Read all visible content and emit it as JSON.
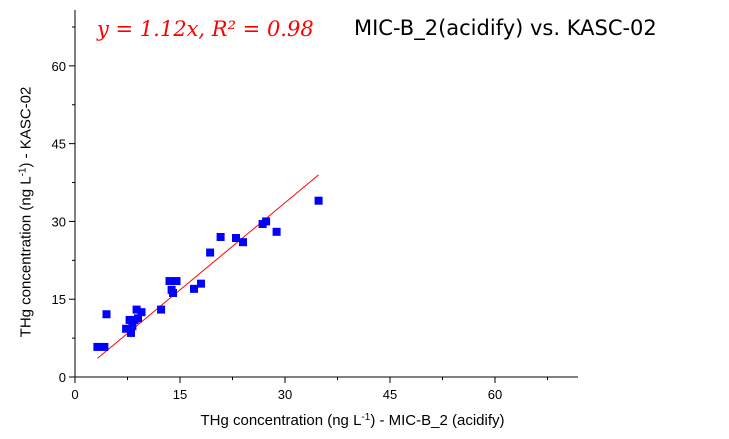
{
  "chart_data": {
    "type": "scatter",
    "title": "MIC-B_2(acidify) vs. KASC-02",
    "annotation": "y = 1.12x, R² = 0.98",
    "xlabel": {
      "before": "THg concentration (ng L",
      "sup": "-1",
      "after": ") - MIC-B_2 (acidify)"
    },
    "ylabel": {
      "before": "THg concentration (ng L",
      "sup": "-1",
      "after": ") - KASC-02"
    },
    "xlim": [
      0,
      70
    ],
    "ylim": [
      0,
      70
    ],
    "xticks": [
      "0",
      "15",
      "30",
      "45",
      "60"
    ],
    "yticks": [
      "0",
      "15",
      "30",
      "45",
      "60"
    ],
    "grid": false,
    "series": [
      {
        "marker_color": "#0000ff",
        "x": [
          3.2,
          4.2,
          4.5,
          7.3,
          7.8,
          8.0,
          8.2,
          8.5,
          8.8,
          9.0,
          9.5,
          12.3,
          13.5,
          13.8,
          14.0,
          14.5,
          17.0,
          18.0,
          19.3,
          20.8,
          23.0,
          24.0,
          26.8,
          27.3,
          28.8,
          34.8
        ],
        "y": [
          5.8,
          5.8,
          12.1,
          9.3,
          11.0,
          8.5,
          9.8,
          11.0,
          13.0,
          11.3,
          12.5,
          13.0,
          18.5,
          16.8,
          16.2,
          18.5,
          17.0,
          18.0,
          24.0,
          27.0,
          26.8,
          26.0,
          29.5,
          30.0,
          28.0,
          34.0
        ]
      }
    ],
    "fit_line": {
      "slope": 1.12,
      "x_range": [
        3.2,
        34.8
      ],
      "color": "#ff0000"
    }
  }
}
